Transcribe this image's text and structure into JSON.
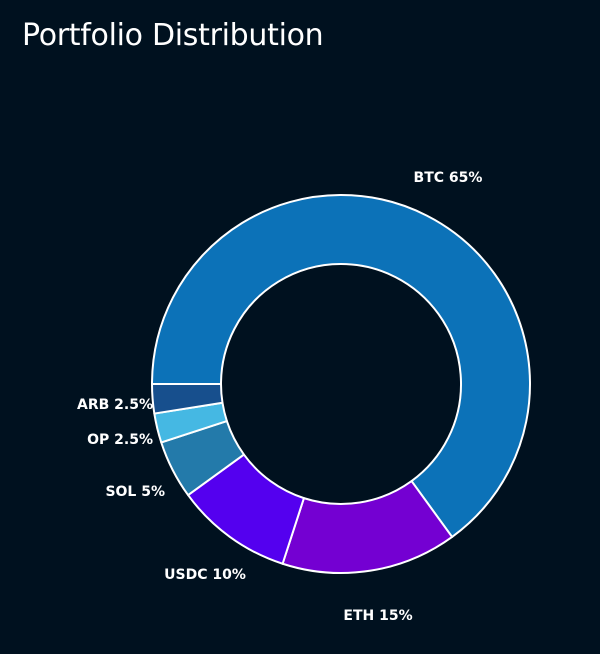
{
  "title": "Portfolio Distribution",
  "colors": {
    "background": "#00111f",
    "title": "#ffffff",
    "slice_border": "#ffffff",
    "label": "#ffffff"
  },
  "chart_data": {
    "type": "pie",
    "style": "donut",
    "title": "Portfolio Distribution",
    "legend": "none",
    "labels_placement": "outside",
    "slices": [
      {
        "name": "BTC",
        "value": 65,
        "label": "BTC 65%",
        "color": "#0c72b8"
      },
      {
        "name": "ETH",
        "value": 15,
        "label": "ETH 15%",
        "color": "#7400d2"
      },
      {
        "name": "USDC",
        "value": 10,
        "label": "USDC 10%",
        "color": "#5400ef"
      },
      {
        "name": "SOL",
        "value": 5,
        "label": "SOL 5%",
        "color": "#237aaa"
      },
      {
        "name": "OP",
        "value": 2.5,
        "label": "OP 2.5%",
        "color": "#45b8e3"
      },
      {
        "name": "ARB",
        "value": 2.5,
        "label": "ARB 2.5%",
        "color": "#174f8d"
      }
    ]
  }
}
